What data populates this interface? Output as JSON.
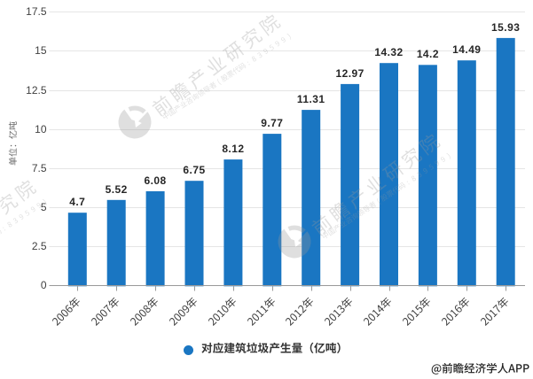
{
  "chart_data": {
    "type": "bar",
    "title": "",
    "categories": [
      "2006年",
      "2007年",
      "2008年",
      "2009年",
      "2010年",
      "2011年",
      "2012年",
      "2013年",
      "2014年",
      "2015年",
      "2016年",
      "2017年"
    ],
    "values": [
      4.7,
      5.52,
      6.08,
      6.75,
      8.12,
      9.77,
      11.31,
      12.97,
      14.32,
      14.2,
      14.49,
      15.93
    ],
    "series_name": "对应建筑垃圾产生量（亿吨）",
    "xlabel": "",
    "ylabel": "单位：亿吨",
    "ylim": [
      0,
      17.5
    ],
    "yticks": [
      "0",
      "2.5",
      "5",
      "7.5",
      "10",
      "12.5",
      "15",
      "17.5"
    ],
    "grid": true,
    "legend_position": "bottom",
    "bar_color": "#1a76c2"
  },
  "legend": {
    "label": "对应建筑垃圾产生量（亿吨）"
  },
  "credit": {
    "text": "@前瞻经济学人APP"
  },
  "watermark": {
    "brand": "前瞻产业研究院",
    "tagline": "中国产业咨询领导者(股票代码:839599)"
  },
  "colors": {
    "bar": "#1a76c2",
    "grid_line": "#e5e5e5",
    "axis_line": "#999999",
    "axis_label": "#3f3f3f",
    "data_label": "#262626",
    "y_title": "#666666",
    "legend_text": "#333333",
    "credit_text": "#222222",
    "watermark": "#999999"
  }
}
